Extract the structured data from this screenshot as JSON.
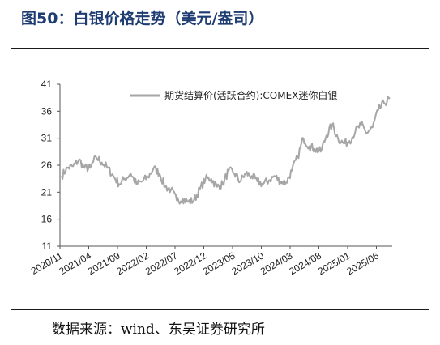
{
  "figure": {
    "title": "图50：白银价格走势（美元/盎司）",
    "source": "数据来源：wind、东吴证券研究所"
  },
  "chart_data": {
    "type": "line",
    "title": "",
    "xlabel": "",
    "ylabel": "",
    "ylim": [
      11,
      41
    ],
    "yticks": [
      11,
      16,
      21,
      26,
      31,
      36,
      41
    ],
    "xticks": [
      "2020/11",
      "2021/04",
      "2021/09",
      "2022/02",
      "2022/07",
      "2022/12",
      "2023/05",
      "2023/10",
      "2024/03",
      "2024/08",
      "2025/01",
      "2025/06"
    ],
    "legend_position": "top-right",
    "grid": false,
    "series": [
      {
        "name": "期货结算价(活跃合约):COMEX迷你白银",
        "color": "#a6a6a6",
        "x": [
          "2020/11",
          "2020/12",
          "2021/01",
          "2021/02",
          "2021/03",
          "2021/04",
          "2021/05",
          "2021/06",
          "2021/07",
          "2021/08",
          "2021/09",
          "2021/10",
          "2021/11",
          "2021/12",
          "2022/01",
          "2022/02",
          "2022/03",
          "2022/04",
          "2022/05",
          "2022/06",
          "2022/07",
          "2022/08",
          "2022/09",
          "2022/10",
          "2022/11",
          "2022/12",
          "2023/01",
          "2023/02",
          "2023/03",
          "2023/04",
          "2023/05",
          "2023/06",
          "2023/07",
          "2023/08",
          "2023/09",
          "2023/10",
          "2023/11",
          "2023/12",
          "2024/01",
          "2024/02",
          "2024/03",
          "2024/04",
          "2024/05",
          "2024/06",
          "2024/07",
          "2024/08",
          "2024/09",
          "2024/10",
          "2024/11",
          "2024/12",
          "2025/01",
          "2025/02",
          "2025/03",
          "2025/04",
          "2025/05",
          "2025/06",
          "2025/07",
          "2025/08"
        ],
        "values": [
          24.0,
          25.5,
          25.8,
          27.0,
          25.5,
          25.5,
          27.5,
          26.5,
          25.5,
          24.0,
          22.5,
          23.5,
          24.5,
          22.5,
          23.0,
          23.8,
          25.5,
          24.5,
          22.0,
          21.5,
          19.5,
          19.8,
          19.2,
          19.5,
          21.5,
          23.5,
          23.5,
          22.0,
          22.5,
          25.0,
          24.5,
          23.0,
          24.5,
          24.0,
          23.0,
          22.5,
          23.2,
          24.0,
          23.0,
          22.8,
          25.0,
          27.5,
          31.0,
          29.5,
          29.0,
          28.5,
          31.5,
          33.5,
          31.0,
          30.0,
          30.5,
          32.2,
          33.5,
          32.0,
          33.0,
          36.2,
          37.5,
          38.3
        ]
      }
    ]
  }
}
